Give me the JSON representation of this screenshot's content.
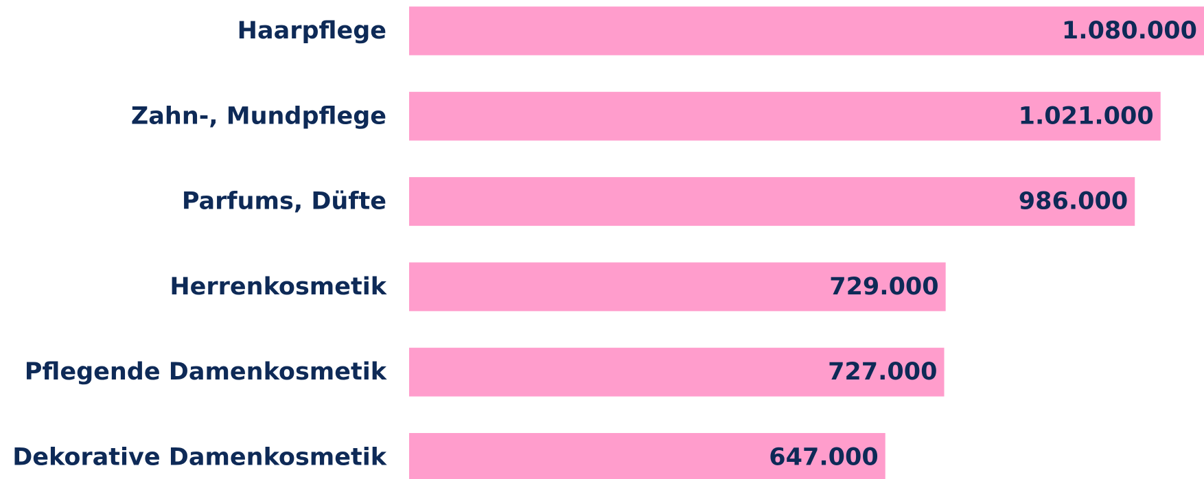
{
  "chart_data": {
    "type": "barh",
    "categories": [
      "Haarpflege",
      "Zahn-, Mundpflege",
      "Parfums, Düfte",
      "Herrenkosmetik",
      "Pflegende Damenkosmetik",
      "Dekorative Damenkosmetik"
    ],
    "values": [
      1080000,
      1021000,
      986000,
      729000,
      727000,
      647000
    ],
    "value_labels": [
      "1.080.000",
      "1.021.000",
      "986.000",
      "729.000",
      "727.000",
      "647.000"
    ],
    "color": "#ff9dcc",
    "xlim": [
      0,
      1080000
    ]
  }
}
